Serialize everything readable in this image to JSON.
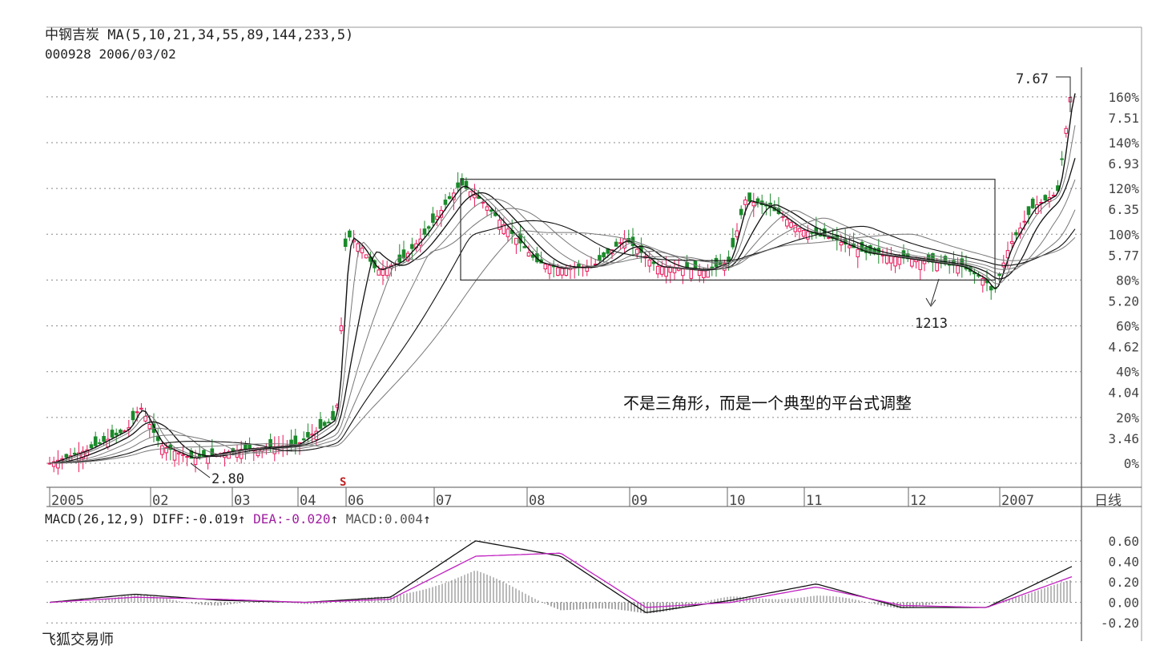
{
  "header": {
    "stock_name": "中钢吉炭",
    "ma_label": "MA(5,10,21,34,55,89,144,233,5)",
    "code": "000928",
    "date": "2006/03/02"
  },
  "macd_header": {
    "label": "MACD(26,12,9)",
    "diff_label": "DIFF:-0.019",
    "dea_label": "DEA:-0.020",
    "macd_label": "MACD:0.004",
    "arrow": "↑"
  },
  "footer_text": "飞狐交易师",
  "period_label": "日线",
  "annotation": "不是三角形，而是一个典型的平台式调整",
  "markers": {
    "high": "7.67",
    "low": "2.80",
    "pivot": "1213",
    "event": "S"
  },
  "colors": {
    "up": "#e8185a",
    "down": "#1a8a2a",
    "grid": "#888888",
    "line_dark": "#111111",
    "line_gray": "#777777",
    "dea": "#c020c0"
  },
  "chart_data": [
    {
      "type": "line",
      "title": "中钢吉炭 MA(5,10,21,34,55,89,144,233,5)",
      "x_ticks": [
        "2005",
        "02",
        "03",
        "04",
        "06",
        "07",
        "08",
        "09",
        "10",
        "11",
        "12",
        "2007"
      ],
      "price_ticks": [
        "7.51",
        "6.93",
        "6.35",
        "5.77",
        "5.20",
        "4.62",
        "4.04",
        "3.46"
      ],
      "percent_ticks": [
        "160%",
        "140%",
        "120%",
        "100%",
        "80%",
        "60%",
        "40%",
        "20%",
        "0%"
      ],
      "ylim_percent": [
        0,
        168
      ],
      "x": [
        "2005-01",
        "2005-02",
        "2005-03",
        "2005-04",
        "2005-06",
        "2005-07",
        "2005-08",
        "2005-09",
        "2005-10",
        "2005-11",
        "2005-12",
        "2006-01",
        "2006-02",
        "2006-03"
      ],
      "series": [
        {
          "name": "close_pct",
          "values": [
            2,
            4,
            18,
            2,
            6,
            20,
            100,
            120,
            95,
            92,
            108,
            98,
            90,
            165
          ]
        }
      ],
      "platform_box_pct": [
        80,
        124
      ]
    },
    {
      "type": "line",
      "title": "MACD(26,12,9)",
      "y_ticks": [
        "0.60",
        "0.40",
        "0.20",
        "0.00",
        "-0.20"
      ],
      "ylim": [
        -0.3,
        0.7
      ],
      "series": [
        {
          "name": "DIFF",
          "values": [
            0.0,
            0.08,
            0.02,
            0.0,
            0.05,
            0.6,
            0.45,
            -0.1,
            0.02,
            0.18,
            -0.05,
            -0.05,
            0.35
          ]
        },
        {
          "name": "DEA",
          "values": [
            0.0,
            0.05,
            0.03,
            0.0,
            0.03,
            0.45,
            0.48,
            -0.05,
            0.0,
            0.15,
            -0.03,
            -0.05,
            0.25
          ]
        }
      ]
    }
  ]
}
